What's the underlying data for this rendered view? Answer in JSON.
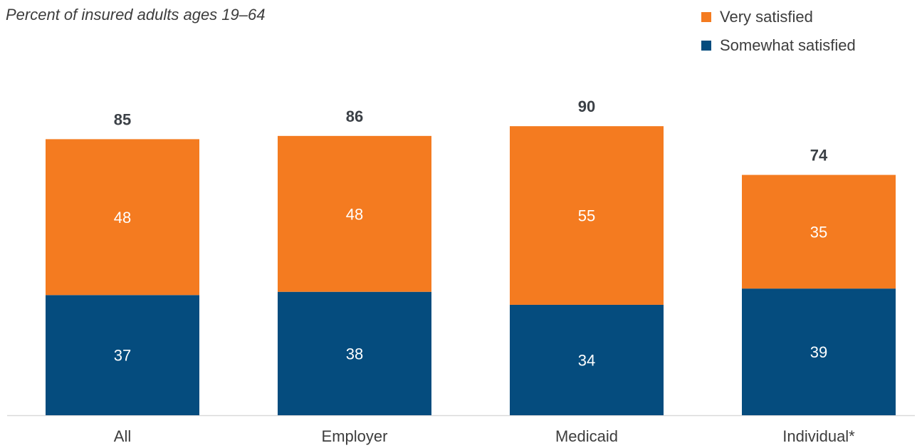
{
  "subtitle": "Percent of insured adults ages 19–64",
  "legend": [
    {
      "label": "Very satisfied",
      "color": "#f47b20"
    },
    {
      "label": "Somewhat satisfied",
      "color": "#054c7e"
    }
  ],
  "chart_data": {
    "type": "bar",
    "stacked": true,
    "subtitle": "Percent of insured adults ages 19–64",
    "categories": [
      "All",
      "Employer",
      "Medicaid",
      "Individual*"
    ],
    "series": [
      {
        "name": "Somewhat satisfied",
        "color": "#054c7e",
        "values": [
          37,
          38,
          34,
          39
        ]
      },
      {
        "name": "Very satisfied",
        "color": "#f47b20",
        "values": [
          48,
          48,
          55,
          35
        ]
      }
    ],
    "totals": [
      85,
      86,
      90,
      74
    ],
    "ylim": [
      0,
      100
    ],
    "grid": false,
    "legend_position": "top-right"
  }
}
